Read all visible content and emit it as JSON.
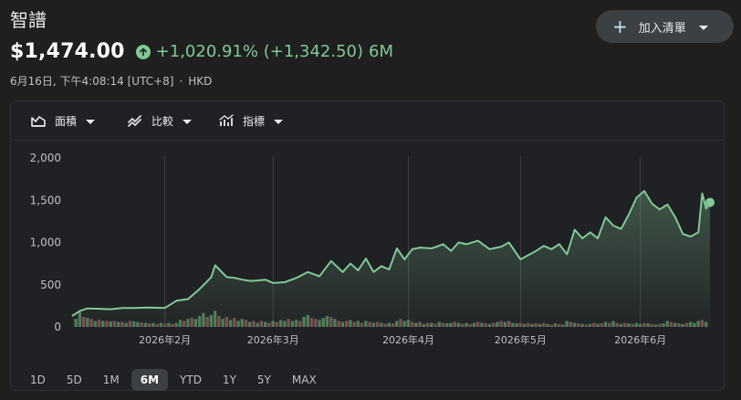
{
  "header": {
    "title": "智譜",
    "price": "$1,474.00",
    "change_text": "+1,020.91% (+1,342.50)",
    "period": "6M",
    "timestamp": "6月16日, 下午4:08:14 [UTC+8]",
    "separator": "·",
    "currency": "HKD"
  },
  "watchlist_button": {
    "label": "加入清單",
    "icon": "plus-icon"
  },
  "toolbar": {
    "area_label": "面積",
    "compare_label": "比較",
    "indicators_label": "指標"
  },
  "ranges": [
    {
      "label": "1D",
      "active": false
    },
    {
      "label": "5D",
      "active": false
    },
    {
      "label": "1M",
      "active": false
    },
    {
      "label": "6M",
      "active": true
    },
    {
      "label": "YTD",
      "active": false
    },
    {
      "label": "1Y",
      "active": false
    },
    {
      "label": "5Y",
      "active": false
    },
    {
      "label": "MAX",
      "active": false
    }
  ],
  "colors": {
    "line": "#81c995",
    "volume_up": "#4d7a55",
    "volume_down": "#7a4d55",
    "grid": "#3c4043"
  },
  "chart_data": {
    "type": "area",
    "y_ticks": [
      "2,000",
      "1,500",
      "1,000",
      "500",
      "0"
    ],
    "y_tick_values": [
      2000,
      1500,
      1000,
      500,
      0
    ],
    "ylim": [
      0,
      2000
    ],
    "x_tick_labels": [
      "2026年2月",
      "2026年3月",
      "2026年4月",
      "2026年5月",
      "2026年6月"
    ],
    "x_tick_days": [
      24,
      52,
      87,
      116,
      147
    ],
    "x_range_days": [
      0,
      165
    ],
    "series": [
      {
        "x": [
          0,
          2,
          4,
          7,
          10,
          13,
          16,
          20,
          24,
          27,
          30,
          33,
          36,
          37,
          40,
          42,
          44,
          46,
          48,
          50,
          52,
          55,
          58,
          61,
          64,
          67,
          70,
          72,
          74,
          76,
          78,
          80,
          82,
          84,
          86,
          88,
          90,
          93,
          96,
          98,
          100,
          102,
          105,
          108,
          111,
          113,
          116,
          118,
          120,
          122,
          124,
          126,
          128,
          130,
          132,
          134,
          136,
          138,
          140,
          142,
          144,
          146,
          148,
          150,
          152,
          154,
          156,
          158,
          160,
          162,
          163,
          164,
          165
        ],
        "y": [
          130,
          190,
          220,
          215,
          210,
          225,
          225,
          230,
          225,
          310,
          330,
          450,
          590,
          730,
          590,
          580,
          560,
          545,
          550,
          560,
          520,
          530,
          580,
          650,
          600,
          780,
          650,
          750,
          670,
          810,
          650,
          720,
          680,
          930,
          800,
          920,
          940,
          930,
          980,
          900,
          1000,
          980,
          1020,
          920,
          950,
          1000,
          800,
          850,
          900,
          960,
          920,
          980,
          860,
          1150,
          1050,
          1120,
          1050,
          1300,
          1200,
          1160,
          1330,
          1530,
          1610,
          1460,
          1390,
          1450,
          1300,
          1100,
          1070,
          1120,
          1580,
          1400,
          1474
        ]
      }
    ],
    "volume": [
      {
        "x": 1,
        "v": 0.4,
        "up": true
      },
      {
        "x": 2,
        "v": 0.75,
        "up": true
      },
      {
        "x": 3,
        "v": 0.5,
        "up": false
      },
      {
        "x": 4,
        "v": 0.45,
        "up": true
      },
      {
        "x": 5,
        "v": 0.4,
        "up": false
      },
      {
        "x": 6,
        "v": 0.3,
        "up": true
      },
      {
        "x": 7,
        "v": 0.35,
        "up": false
      },
      {
        "x": 8,
        "v": 0.3,
        "up": true
      },
      {
        "x": 9,
        "v": 0.3,
        "up": false
      },
      {
        "x": 10,
        "v": 0.28,
        "up": true
      },
      {
        "x": 11,
        "v": 0.3,
        "up": false
      },
      {
        "x": 12,
        "v": 0.25,
        "up": true
      },
      {
        "x": 13,
        "v": 0.25,
        "up": false
      },
      {
        "x": 14,
        "v": 0.2,
        "up": true
      },
      {
        "x": 15,
        "v": 0.3,
        "up": false
      },
      {
        "x": 16,
        "v": 0.28,
        "up": true
      },
      {
        "x": 17,
        "v": 0.25,
        "up": true
      },
      {
        "x": 18,
        "v": 0.22,
        "up": false
      },
      {
        "x": 19,
        "v": 0.2,
        "up": true
      },
      {
        "x": 20,
        "v": 0.18,
        "up": false
      },
      {
        "x": 21,
        "v": 0.2,
        "up": true
      },
      {
        "x": 22,
        "v": 0.15,
        "up": false
      },
      {
        "x": 23,
        "v": 0.2,
        "up": true
      },
      {
        "x": 24,
        "v": 0.15,
        "up": false
      },
      {
        "x": 25,
        "v": 0.2,
        "up": true
      },
      {
        "x": 26,
        "v": 0.15,
        "up": false
      },
      {
        "x": 27,
        "v": 0.2,
        "up": true
      },
      {
        "x": 28,
        "v": 0.35,
        "up": true
      },
      {
        "x": 29,
        "v": 0.3,
        "up": false
      },
      {
        "x": 30,
        "v": 0.4,
        "up": true
      },
      {
        "x": 31,
        "v": 0.45,
        "up": false
      },
      {
        "x": 32,
        "v": 0.4,
        "up": true
      },
      {
        "x": 33,
        "v": 0.55,
        "up": true
      },
      {
        "x": 34,
        "v": 0.7,
        "up": true
      },
      {
        "x": 35,
        "v": 0.5,
        "up": false
      },
      {
        "x": 36,
        "v": 0.6,
        "up": true
      },
      {
        "x": 37,
        "v": 0.8,
        "up": true
      },
      {
        "x": 38,
        "v": 0.55,
        "up": false
      },
      {
        "x": 39,
        "v": 0.4,
        "up": true
      },
      {
        "x": 40,
        "v": 0.5,
        "up": false
      },
      {
        "x": 41,
        "v": 0.35,
        "up": true
      },
      {
        "x": 42,
        "v": 0.45,
        "up": false
      },
      {
        "x": 43,
        "v": 0.3,
        "up": true
      },
      {
        "x": 44,
        "v": 0.4,
        "up": true
      },
      {
        "x": 45,
        "v": 0.35,
        "up": false
      },
      {
        "x": 46,
        "v": 0.25,
        "up": true
      },
      {
        "x": 47,
        "v": 0.3,
        "up": false
      },
      {
        "x": 48,
        "v": 0.2,
        "up": true
      },
      {
        "x": 49,
        "v": 0.3,
        "up": false
      },
      {
        "x": 50,
        "v": 0.25,
        "up": true
      },
      {
        "x": 51,
        "v": 0.2,
        "up": false
      },
      {
        "x": 52,
        "v": 0.3,
        "up": true
      },
      {
        "x": 53,
        "v": 0.25,
        "up": false
      },
      {
        "x": 54,
        "v": 0.35,
        "up": true
      },
      {
        "x": 55,
        "v": 0.3,
        "up": true
      },
      {
        "x": 56,
        "v": 0.4,
        "up": false
      },
      {
        "x": 57,
        "v": 0.3,
        "up": true
      },
      {
        "x": 58,
        "v": 0.35,
        "up": true
      },
      {
        "x": 59,
        "v": 0.3,
        "up": false
      },
      {
        "x": 60,
        "v": 0.5,
        "up": true
      },
      {
        "x": 61,
        "v": 0.6,
        "up": true
      },
      {
        "x": 62,
        "v": 0.45,
        "up": false
      },
      {
        "x": 63,
        "v": 0.4,
        "up": false
      },
      {
        "x": 64,
        "v": 0.35,
        "up": true
      },
      {
        "x": 65,
        "v": 0.45,
        "up": true
      },
      {
        "x": 66,
        "v": 0.55,
        "up": true
      },
      {
        "x": 67,
        "v": 0.5,
        "up": false
      },
      {
        "x": 68,
        "v": 0.4,
        "up": true
      },
      {
        "x": 69,
        "v": 0.3,
        "up": false
      },
      {
        "x": 70,
        "v": 0.25,
        "up": true
      },
      {
        "x": 71,
        "v": 0.3,
        "up": false
      },
      {
        "x": 72,
        "v": 0.35,
        "up": true
      },
      {
        "x": 73,
        "v": 0.25,
        "up": false
      },
      {
        "x": 74,
        "v": 0.3,
        "up": true
      },
      {
        "x": 75,
        "v": 0.2,
        "up": false
      },
      {
        "x": 76,
        "v": 0.3,
        "up": true
      },
      {
        "x": 77,
        "v": 0.25,
        "up": false
      },
      {
        "x": 78,
        "v": 0.2,
        "up": true
      },
      {
        "x": 79,
        "v": 0.25,
        "up": false
      },
      {
        "x": 80,
        "v": 0.2,
        "up": true
      },
      {
        "x": 81,
        "v": 0.15,
        "up": false
      },
      {
        "x": 82,
        "v": 0.2,
        "up": true
      },
      {
        "x": 83,
        "v": 0.18,
        "up": false
      },
      {
        "x": 84,
        "v": 0.3,
        "up": true
      },
      {
        "x": 85,
        "v": 0.4,
        "up": false
      },
      {
        "x": 86,
        "v": 0.3,
        "up": true
      },
      {
        "x": 87,
        "v": 0.35,
        "up": true
      },
      {
        "x": 88,
        "v": 0.25,
        "up": false
      },
      {
        "x": 89,
        "v": 0.2,
        "up": true
      },
      {
        "x": 90,
        "v": 0.25,
        "up": false
      },
      {
        "x": 91,
        "v": 0.15,
        "up": true
      },
      {
        "x": 92,
        "v": 0.2,
        "up": false
      },
      {
        "x": 93,
        "v": 0.2,
        "up": true
      },
      {
        "x": 94,
        "v": 0.15,
        "up": false
      },
      {
        "x": 95,
        "v": 0.25,
        "up": true
      },
      {
        "x": 96,
        "v": 0.2,
        "up": false
      },
      {
        "x": 97,
        "v": 0.18,
        "up": true
      },
      {
        "x": 98,
        "v": 0.2,
        "up": true
      },
      {
        "x": 99,
        "v": 0.25,
        "up": false
      },
      {
        "x": 100,
        "v": 0.2,
        "up": true
      },
      {
        "x": 101,
        "v": 0.15,
        "up": false
      },
      {
        "x": 102,
        "v": 0.2,
        "up": true
      },
      {
        "x": 103,
        "v": 0.15,
        "up": false
      },
      {
        "x": 104,
        "v": 0.2,
        "up": true
      },
      {
        "x": 105,
        "v": 0.25,
        "up": false
      },
      {
        "x": 106,
        "v": 0.2,
        "up": true
      },
      {
        "x": 107,
        "v": 0.18,
        "up": false
      },
      {
        "x": 108,
        "v": 0.15,
        "up": true
      },
      {
        "x": 109,
        "v": 0.2,
        "up": false
      },
      {
        "x": 110,
        "v": 0.25,
        "up": true
      },
      {
        "x": 111,
        "v": 0.3,
        "up": false
      },
      {
        "x": 112,
        "v": 0.25,
        "up": true
      },
      {
        "x": 113,
        "v": 0.3,
        "up": false
      },
      {
        "x": 114,
        "v": 0.2,
        "up": true
      },
      {
        "x": 115,
        "v": 0.18,
        "up": true
      },
      {
        "x": 116,
        "v": 0.2,
        "up": false
      },
      {
        "x": 117,
        "v": 0.15,
        "up": true
      },
      {
        "x": 118,
        "v": 0.2,
        "up": false
      },
      {
        "x": 119,
        "v": 0.15,
        "up": true
      },
      {
        "x": 120,
        "v": 0.18,
        "up": false
      },
      {
        "x": 121,
        "v": 0.15,
        "up": true
      },
      {
        "x": 122,
        "v": 0.2,
        "up": false
      },
      {
        "x": 123,
        "v": 0.15,
        "up": true
      },
      {
        "x": 124,
        "v": 0.12,
        "up": false
      },
      {
        "x": 125,
        "v": 0.18,
        "up": true
      },
      {
        "x": 126,
        "v": 0.15,
        "up": false
      },
      {
        "x": 127,
        "v": 0.12,
        "up": true
      },
      {
        "x": 128,
        "v": 0.3,
        "up": true
      },
      {
        "x": 129,
        "v": 0.25,
        "up": false
      },
      {
        "x": 130,
        "v": 0.2,
        "up": true
      },
      {
        "x": 131,
        "v": 0.18,
        "up": false
      },
      {
        "x": 132,
        "v": 0.15,
        "up": true
      },
      {
        "x": 133,
        "v": 0.12,
        "up": false
      },
      {
        "x": 134,
        "v": 0.15,
        "up": true
      },
      {
        "x": 135,
        "v": 0.2,
        "up": false
      },
      {
        "x": 136,
        "v": 0.15,
        "up": true
      },
      {
        "x": 137,
        "v": 0.18,
        "up": false
      },
      {
        "x": 138,
        "v": 0.25,
        "up": true
      },
      {
        "x": 139,
        "v": 0.2,
        "up": false
      },
      {
        "x": 140,
        "v": 0.3,
        "up": true
      },
      {
        "x": 141,
        "v": 0.2,
        "up": false
      },
      {
        "x": 142,
        "v": 0.15,
        "up": true
      },
      {
        "x": 143,
        "v": 0.2,
        "up": false
      },
      {
        "x": 144,
        "v": 0.18,
        "up": true
      },
      {
        "x": 145,
        "v": 0.15,
        "up": false
      },
      {
        "x": 146,
        "v": 0.2,
        "up": true
      },
      {
        "x": 147,
        "v": 0.15,
        "up": true
      },
      {
        "x": 148,
        "v": 0.2,
        "up": false
      },
      {
        "x": 149,
        "v": 0.18,
        "up": true
      },
      {
        "x": 150,
        "v": 0.15,
        "up": false
      },
      {
        "x": 151,
        "v": 0.12,
        "up": true
      },
      {
        "x": 152,
        "v": 0.15,
        "up": false
      },
      {
        "x": 153,
        "v": 0.18,
        "up": true
      },
      {
        "x": 154,
        "v": 0.3,
        "up": true
      },
      {
        "x": 155,
        "v": 0.25,
        "up": false
      },
      {
        "x": 156,
        "v": 0.2,
        "up": true
      },
      {
        "x": 157,
        "v": 0.18,
        "up": false
      },
      {
        "x": 158,
        "v": 0.15,
        "up": true
      },
      {
        "x": 159,
        "v": 0.2,
        "up": false
      },
      {
        "x": 160,
        "v": 0.25,
        "up": true
      },
      {
        "x": 161,
        "v": 0.2,
        "up": true
      },
      {
        "x": 162,
        "v": 0.3,
        "up": true
      },
      {
        "x": 163,
        "v": 0.35,
        "up": false
      },
      {
        "x": 164,
        "v": 0.25,
        "up": true
      }
    ]
  }
}
